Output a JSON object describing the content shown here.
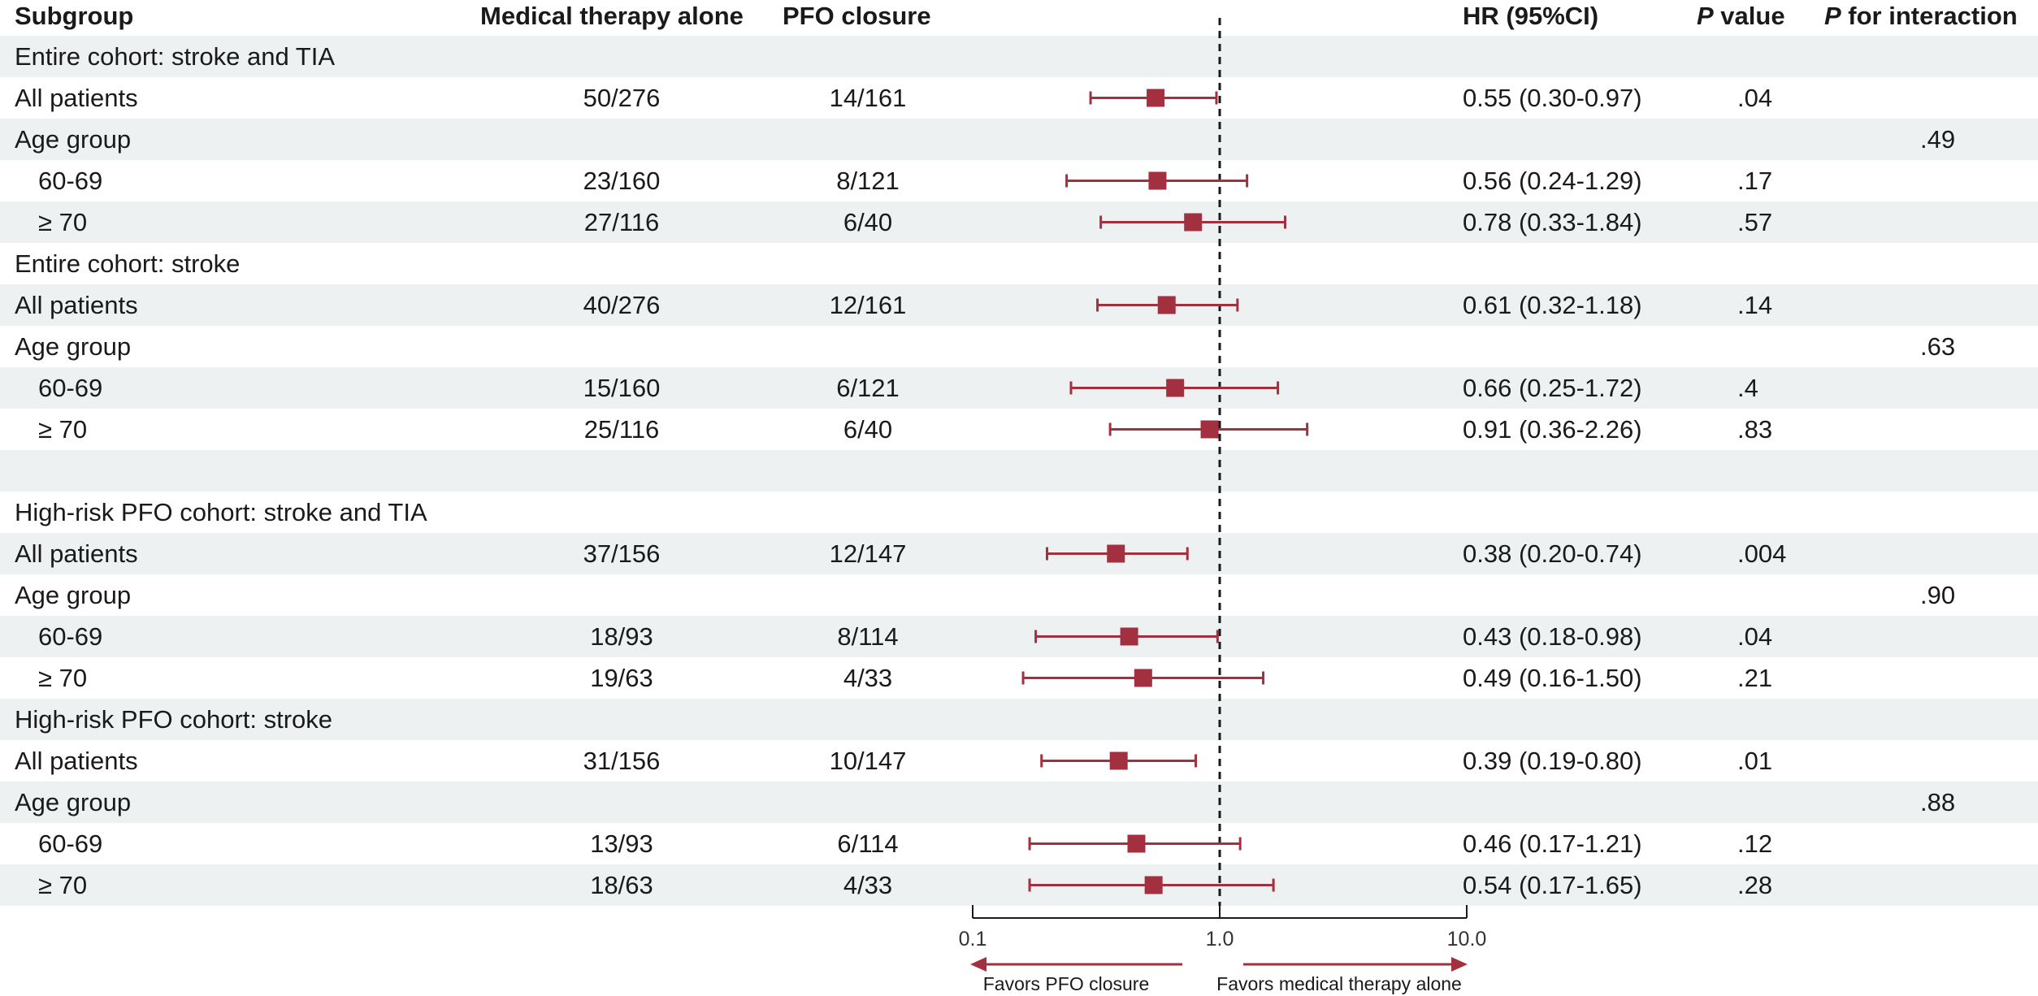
{
  "colors": {
    "marker": "#a3303e",
    "shade": "#edf1f1",
    "refline": "#1a1a1a"
  },
  "headers": {
    "subgroup": "Subgroup",
    "medical": "Medical therapy alone",
    "pfo": "PFO closure",
    "hr": "HR (95%CI)",
    "p_italic": "P",
    "p_rest": " value",
    "pint_italic": "P",
    "pint_rest": " for interaction"
  },
  "rows": [
    {
      "label": "Entire cohort:  stroke and TIA",
      "indent": false,
      "medical": "",
      "pfo": "",
      "hr_text": "",
      "p": "",
      "p_int": "",
      "shaded": true
    },
    {
      "label": "All patients",
      "indent": false,
      "medical": "50/276",
      "pfo": "14/161",
      "hr_text": "0.55 (0.30-0.97)",
      "p": ".04",
      "p_int": "",
      "shaded": false
    },
    {
      "label": "Age group",
      "indent": false,
      "medical": "",
      "pfo": "",
      "hr_text": "",
      "p": "",
      "p_int": ".49",
      "shaded": true
    },
    {
      "label": "60-69",
      "indent": true,
      "medical": "23/160",
      "pfo": "8/121",
      "hr_text": "0.56 (0.24-1.29)",
      "p": ".17",
      "p_int": "",
      "shaded": false
    },
    {
      "label": "≥ 70",
      "indent": true,
      "medical": "27/116",
      "pfo": "6/40",
      "hr_text": "0.78 (0.33-1.84)",
      "p": ".57",
      "p_int": "",
      "shaded": true
    },
    {
      "label": "Entire cohort:  stroke",
      "indent": false,
      "medical": "",
      "pfo": "",
      "hr_text": "",
      "p": "",
      "p_int": "",
      "shaded": false
    },
    {
      "label": "All patients",
      "indent": false,
      "medical": "40/276",
      "pfo": "12/161",
      "hr_text": "0.61 (0.32-1.18)",
      "p": ".14",
      "p_int": "",
      "shaded": true
    },
    {
      "label": "Age group",
      "indent": false,
      "medical": "",
      "pfo": "",
      "hr_text": "",
      "p": "",
      "p_int": ".63",
      "shaded": false
    },
    {
      "label": "60-69",
      "indent": true,
      "medical": "15/160",
      "pfo": "6/121",
      "hr_text": "0.66 (0.25-1.72)",
      "p": ".4",
      "p_int": "",
      "shaded": true
    },
    {
      "label": "≥ 70",
      "indent": true,
      "medical": "25/116",
      "pfo": "6/40",
      "hr_text": "0.91 (0.36-2.26)",
      "p": ".83",
      "p_int": "",
      "shaded": false
    },
    {
      "label": "",
      "indent": false,
      "medical": "",
      "pfo": "",
      "hr_text": "",
      "p": "",
      "p_int": "",
      "shaded": true
    },
    {
      "label": "High-risk PFO cohort:  stroke and TIA",
      "indent": false,
      "medical": "",
      "pfo": "",
      "hr_text": "",
      "p": "",
      "p_int": "",
      "shaded": false
    },
    {
      "label": "All patients",
      "indent": false,
      "medical": "37/156",
      "pfo": "12/147",
      "hr_text": "0.38 (0.20-0.74)",
      "p": ".004",
      "p_int": "",
      "shaded": true
    },
    {
      "label": "Age group",
      "indent": false,
      "medical": "",
      "pfo": "",
      "hr_text": "",
      "p": "",
      "p_int": ".90",
      "shaded": false
    },
    {
      "label": "60-69",
      "indent": true,
      "medical": "18/93",
      "pfo": "8/114",
      "hr_text": "0.43 (0.18-0.98)",
      "p": ".04",
      "p_int": "",
      "shaded": true
    },
    {
      "label": "≥ 70",
      "indent": true,
      "medical": "19/63",
      "pfo": "4/33",
      "hr_text": "0.49 (0.16-1.50)",
      "p": ".21",
      "p_int": "",
      "shaded": false
    },
    {
      "label": "High-risk PFO cohort:  stroke",
      "indent": false,
      "medical": "",
      "pfo": "",
      "hr_text": "",
      "p": "",
      "p_int": "",
      "shaded": true
    },
    {
      "label": "All patients",
      "indent": false,
      "medical": "31/156",
      "pfo": "10/147",
      "hr_text": "0.39 (0.19-0.80)",
      "p": ".01",
      "p_int": "",
      "shaded": false
    },
    {
      "label": "Age group",
      "indent": false,
      "medical": "",
      "pfo": "",
      "hr_text": "",
      "p": "",
      "p_int": ".88",
      "shaded": true
    },
    {
      "label": "60-69",
      "indent": true,
      "medical": "13/93",
      "pfo": "6/114",
      "hr_text": "0.46 (0.17-1.21)",
      "p": ".12",
      "p_int": "",
      "shaded": false
    },
    {
      "label": "≥ 70",
      "indent": true,
      "medical": "18/63",
      "pfo": "4/33",
      "hr_text": "0.54 (0.17-1.65)",
      "p": ".28",
      "p_int": "",
      "shaded": true
    }
  ],
  "chart_data": {
    "type": "forest",
    "x_scale": "log",
    "xlim": [
      0.1,
      10.0
    ],
    "reference_line": 1.0,
    "x_ticks": [
      0.1,
      1.0,
      10.0
    ],
    "x_tick_labels": [
      "0.1",
      "1.0",
      "10.0"
    ],
    "favors_left": "Favors PFO closure",
    "favors_right": "Favors medical therapy alone",
    "estimates": [
      {
        "row": 1,
        "hr": 0.55,
        "lo": 0.3,
        "hi": 0.97
      },
      {
        "row": 3,
        "hr": 0.56,
        "lo": 0.24,
        "hi": 1.29
      },
      {
        "row": 4,
        "hr": 0.78,
        "lo": 0.33,
        "hi": 1.84
      },
      {
        "row": 6,
        "hr": 0.61,
        "lo": 0.32,
        "hi": 1.18
      },
      {
        "row": 8,
        "hr": 0.66,
        "lo": 0.25,
        "hi": 1.72
      },
      {
        "row": 9,
        "hr": 0.91,
        "lo": 0.36,
        "hi": 2.26
      },
      {
        "row": 12,
        "hr": 0.38,
        "lo": 0.2,
        "hi": 0.74
      },
      {
        "row": 14,
        "hr": 0.43,
        "lo": 0.18,
        "hi": 0.98
      },
      {
        "row": 15,
        "hr": 0.49,
        "lo": 0.16,
        "hi": 1.5
      },
      {
        "row": 17,
        "hr": 0.39,
        "lo": 0.19,
        "hi": 0.8
      },
      {
        "row": 19,
        "hr": 0.46,
        "lo": 0.17,
        "hi": 1.21
      },
      {
        "row": 20,
        "hr": 0.54,
        "lo": 0.17,
        "hi": 1.65
      }
    ]
  }
}
